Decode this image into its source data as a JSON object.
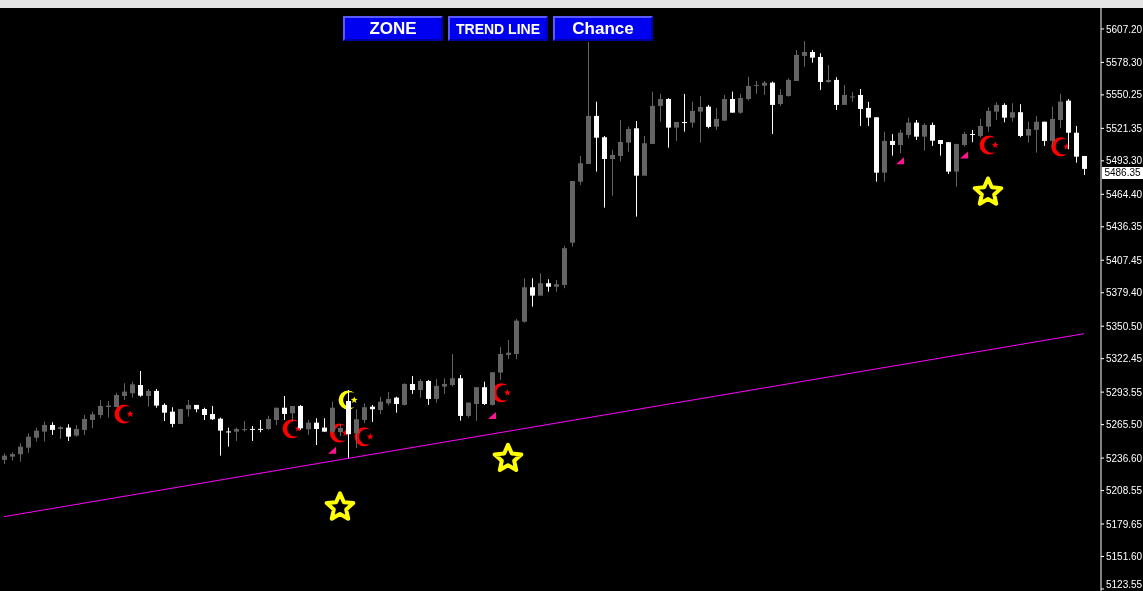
{
  "chart_data": {
    "type": "candlestick",
    "categories": [
      null,
      null,
      null,
      null,
      null,
      null,
      null,
      null,
      null,
      null,
      null,
      null,
      null,
      null,
      null,
      null,
      null,
      null,
      null,
      null,
      null,
      null,
      null,
      null,
      null,
      null,
      null,
      null,
      null,
      null,
      null,
      null,
      null,
      null,
      null,
      null,
      null,
      null,
      null,
      null,
      null,
      null,
      null,
      null,
      null,
      null,
      null,
      null,
      null,
      null,
      null,
      null,
      null,
      null,
      null,
      null,
      null,
      null,
      null,
      null,
      null,
      null,
      null,
      null,
      null,
      null,
      null,
      null,
      null,
      null,
      null,
      null,
      null,
      null,
      null,
      null,
      null,
      null,
      null,
      null,
      null,
      null,
      null,
      null,
      null,
      null,
      null,
      null,
      null,
      null,
      null,
      null,
      null,
      null,
      null,
      null,
      null,
      null,
      null,
      null,
      null,
      null,
      null,
      null,
      null,
      null,
      null,
      null,
      null,
      null,
      null,
      null,
      null,
      null,
      null,
      null,
      null,
      null,
      null,
      null,
      null,
      null,
      null,
      null,
      null,
      null,
      null,
      null,
      null,
      null,
      null,
      null,
      null,
      null,
      null,
      null
    ],
    "ohlc": [
      [
        5235.0,
        5240.7,
        5231.5,
        5238.7
      ],
      [
        5237.8,
        5241.6,
        5234.4,
        5240.1
      ],
      [
        5239.9,
        5249.4,
        5233.5,
        5246.5
      ],
      [
        5245.6,
        5258.0,
        5241.3,
        5255.1
      ],
      [
        5254.2,
        5262.9,
        5250.8,
        5260.3
      ],
      [
        5259.4,
        5268.1,
        5250.8,
        5265.2
      ],
      [
        5265.2,
        5267.5,
        5256.6,
        5260.9
      ],
      [
        5261.7,
        5264.3,
        5253.1,
        5263.2
      ],
      [
        5262.9,
        5265.8,
        5251.4,
        5255.1
      ],
      [
        5256.0,
        5265.2,
        5255.1,
        5261.7
      ],
      [
        5260.9,
        5273.8,
        5256.6,
        5270.4
      ],
      [
        5269.5,
        5276.7,
        5262.3,
        5274.4
      ],
      [
        5273.8,
        5286.8,
        5271.0,
        5281.6
      ],
      [
        5280.7,
        5285.9,
        5271.5,
        5281.9
      ],
      [
        5280.7,
        5293.1,
        5280.5,
        5291.1
      ],
      [
        5290.2,
        5301.2,
        5286.8,
        5294.0
      ],
      [
        5292.6,
        5302.6,
        5288.8,
        5300.3
      ],
      [
        5299.7,
        5311.8,
        5289.6,
        5290.5
      ],
      [
        5290.2,
        5296.3,
        5281.0,
        5294.6
      ],
      [
        5294.6,
        5296.3,
        5280.1,
        5281.9
      ],
      [
        5282.5,
        5283.9,
        5268.6,
        5275.8
      ],
      [
        5276.7,
        5280.5,
        5263.2,
        5266.1
      ],
      [
        5266.1,
        5279.0,
        5266.1,
        5279.0
      ],
      [
        5278.8,
        5286.8,
        5272.4,
        5282.5
      ],
      [
        5282.5,
        5282.5,
        5276.2,
        5278.8
      ],
      [
        5279.0,
        5280.1,
        5269.5,
        5273.8
      ],
      [
        5274.7,
        5281.6,
        5269.5,
        5270.1
      ],
      [
        5270.6,
        5271.5,
        5238.7,
        5260.3
      ],
      [
        5259.6,
        5262.9,
        5246.5,
        5259.2
      ],
      [
        5259.4,
        5262.9,
        5251.4,
        5261.7
      ],
      [
        5261.3,
        5268.6,
        5259.4,
        5261.6
      ],
      [
        5261.8,
        5264.3,
        5251.4,
        5261.6
      ],
      [
        5261.8,
        5269.5,
        5258.9,
        5261.6
      ],
      [
        5261.7,
        5273.2,
        5260.9,
        5270.4
      ],
      [
        5269.5,
        5280.1,
        5265.2,
        5280.1
      ],
      [
        5280.1,
        5290.2,
        5269.5,
        5274.7
      ],
      [
        5275.3,
        5281.6,
        5268.1,
        5281.6
      ],
      [
        5281.6,
        5282.5,
        5260.9,
        5262.3
      ],
      [
        5261.5,
        5269.5,
        5256.6,
        5267.2
      ],
      [
        5267.2,
        5271.0,
        5247.9,
        5261.7
      ],
      [
        5262.9,
        5271.0,
        5259.4,
        5259.4
      ],
      [
        5259.4,
        5285.3,
        5258.0,
        5280.1
      ],
      [
        5259.1,
        5266.0,
        5255.7,
        5262.6
      ],
      [
        5285.9,
        5295.4,
        5236.4,
        5257.2
      ],
      [
        5258.0,
        5278.7,
        5245.1,
        5270.1
      ],
      [
        5269.5,
        5283.9,
        5266.7,
        5280.5
      ],
      [
        5281.0,
        5282.5,
        5267.8,
        5278.8
      ],
      [
        5278.1,
        5289.6,
        5274.4,
        5285.3
      ],
      [
        5283.9,
        5293.7,
        5281.9,
        5287.7
      ],
      [
        5288.8,
        5289.6,
        5275.8,
        5283.3
      ],
      [
        5282.5,
        5301.2,
        5281.9,
        5300.6
      ],
      [
        5300.6,
        5307.5,
        5292.0,
        5295.4
      ],
      [
        5295.4,
        5304.9,
        5288.8,
        5303.2
      ],
      [
        5303.2,
        5304.1,
        5282.5,
        5287.7
      ],
      [
        5287.7,
        5304.9,
        5284.5,
        5298.9
      ],
      [
        5298.3,
        5305.5,
        5292.0,
        5300.6
      ],
      [
        5299.7,
        5326.5,
        5298.3,
        5305.5
      ],
      [
        5305.5,
        5308.4,
        5268.9,
        5273.0
      ],
      [
        5273.0,
        5284.5,
        5271.5,
        5284.5
      ],
      [
        5283.3,
        5297.8,
        5268.9,
        5297.8
      ],
      [
        5297.8,
        5302.6,
        5282.5,
        5283.3
      ],
      [
        5282.5,
        5310.7,
        5281.9,
        5310.7
      ],
      [
        5310.4,
        5332.3,
        5304.1,
        5326.5
      ],
      [
        5325.7,
        5338.6,
        5322.2,
        5327.6
      ],
      [
        5326.5,
        5356.7,
        5321.9,
        5355.3
      ],
      [
        5354.4,
        5391.9,
        5353.5,
        5384.1
      ],
      [
        5384.1,
        5391.9,
        5367.4,
        5376.9
      ],
      [
        5376.9,
        5396.2,
        5376.9,
        5387.6
      ],
      [
        5387.6,
        5391.0,
        5380.3,
        5384.6
      ],
      [
        5384.6,
        5390.4,
        5380.3,
        5386.7
      ],
      [
        5386.1,
        5419.8,
        5383.3,
        5417.8
      ],
      [
        5422.6,
        5475.9,
        5419.2,
        5475.9
      ],
      [
        5475.3,
        5497.5,
        5472.5,
        5491.2
      ],
      [
        5490.6,
        5596.0,
        5490.6,
        5532.1
      ],
      [
        5532.1,
        5544.4,
        5484.0,
        5513.3
      ],
      [
        5513.7,
        5514.8,
        5452.9,
        5494.9
      ],
      [
        5494.9,
        5502.7,
        5463.2,
        5498.4
      ],
      [
        5497.5,
        5528.6,
        5492.6,
        5509.6
      ],
      [
        5509.0,
        5522.8,
        5501.2,
        5520.8
      ],
      [
        5521.4,
        5527.7,
        5445.1,
        5480.5
      ],
      [
        5480.5,
        5514.8,
        5480.5,
        5508.5
      ],
      [
        5507.9,
        5553.1,
        5507.9,
        5540.7
      ],
      [
        5540.7,
        5551.1,
        5527.1,
        5546.7
      ],
      [
        5546.7,
        5547.4,
        5504.7,
        5522.0
      ],
      [
        5522.0,
        5526.9,
        5510.5,
        5526.9
      ],
      [
        5526.8,
        5551.1,
        5518.5,
        5526.5
      ],
      [
        5526.3,
        5544.4,
        5522.0,
        5536.4
      ],
      [
        5535.8,
        5549.3,
        5509.0,
        5539.8
      ],
      [
        5540.1,
        5541.6,
        5521.4,
        5522.6
      ],
      [
        5522.8,
        5539.0,
        5520.0,
        5529.5
      ],
      [
        5528.0,
        5550.2,
        5528.0,
        5546.7
      ],
      [
        5546.7,
        5553.1,
        5534.9,
        5534.9
      ],
      [
        5534.9,
        5551.1,
        5533.8,
        5547.6
      ],
      [
        5546.7,
        5566.0,
        5545.3,
        5558.0
      ],
      [
        5558.7,
        5562.3,
        5551.1,
        5558.9
      ],
      [
        5558.2,
        5562.3,
        5550.2,
        5560.8
      ],
      [
        5560.8,
        5561.7,
        5516.5,
        5541.6
      ],
      [
        5542.4,
        5555.1,
        5540.7,
        5550.2
      ],
      [
        5549.3,
        5564.6,
        5548.7,
        5563.2
      ],
      [
        5562.3,
        5589.1,
        5562.3,
        5584.8
      ],
      [
        5583.9,
        5596.8,
        5574.6,
        5587.3
      ],
      [
        5587.3,
        5589.1,
        5578.1,
        5582.4
      ],
      [
        5583.0,
        5586.2,
        5554.5,
        5561.4
      ],
      [
        5561.4,
        5576.1,
        5560.8,
        5563.2
      ],
      [
        5563.2,
        5565.5,
        5537.2,
        5541.6
      ],
      [
        5541.6,
        5558.8,
        5541.6,
        5550.2
      ],
      [
        5548.5,
        5552.8,
        5544.4,
        5548.9
      ],
      [
        5550.2,
        5555.4,
        5523.4,
        5538.1
      ],
      [
        5539.0,
        5544.2,
        5523.4,
        5530.6
      ],
      [
        5530.9,
        5530.9,
        5475.3,
        5483.1
      ],
      [
        5483.1,
        5518.5,
        5475.3,
        5510.5
      ],
      [
        5510.5,
        5516.3,
        5497.8,
        5507.0
      ],
      [
        5507.0,
        5520.0,
        5499.9,
        5517.6
      ],
      [
        5515.7,
        5530.6,
        5512.8,
        5526.3
      ],
      [
        5526.3,
        5528.6,
        5511.3,
        5514.2
      ],
      [
        5514.2,
        5525.8,
        5502.1,
        5524.3
      ],
      [
        5524.3,
        5526.3,
        5506.2,
        5510.7
      ],
      [
        5511.3,
        5511.3,
        5497.8,
        5507.9
      ],
      [
        5509.4,
        5509.4,
        5482.0,
        5484.0
      ],
      [
        5484.0,
        5507.9,
        5471.0,
        5507.9
      ],
      [
        5507.0,
        5518.5,
        5505.6,
        5516.5
      ],
      [
        5516.5,
        5520.0,
        5509.4,
        5516.1
      ],
      [
        5514.8,
        5529.5,
        5513.3,
        5523.4
      ],
      [
        5522.8,
        5539.6,
        5518.5,
        5536.4
      ],
      [
        5535.8,
        5543.9,
        5528.6,
        5541.6
      ],
      [
        5541.6,
        5543.0,
        5526.6,
        5530.6
      ],
      [
        5530.6,
        5543.0,
        5527.1,
        5535.3
      ],
      [
        5535.3,
        5542.2,
        5513.7,
        5514.8
      ],
      [
        5515.1,
        5527.1,
        5509.0,
        5520.8
      ],
      [
        5520.0,
        5532.1,
        5500.4,
        5527.1
      ],
      [
        5527.1,
        5527.1,
        5506.2,
        5510.5
      ],
      [
        5510.5,
        5540.1,
        5505.6,
        5529.5
      ],
      [
        5528.6,
        5551.1,
        5521.4,
        5544.4
      ],
      [
        5545.3,
        5546.7,
        5503.3,
        5517.6
      ],
      [
        5517.6,
        5523.4,
        5491.7,
        5496.9
      ],
      [
        5497.5,
        5497.5,
        5481.1,
        5486.35
      ]
    ],
    "colors": [
      "#646464",
      "#646464",
      "#646464",
      "#646464",
      "#646464",
      "#646464",
      "#ffffff",
      "#646464",
      "#ffffff",
      "#646464",
      "#646464",
      "#646464",
      "#646464",
      "#646464",
      "#646464",
      "#646464",
      "#646464",
      "#ffffff",
      "#646464",
      "#ffffff",
      "#ffffff",
      "#ffffff",
      "#646464",
      "#646464",
      "#ffffff",
      "#ffffff",
      "#ffffff",
      "#ffffff",
      "#ffffff",
      "#646464",
      "#646464",
      "#ffffff",
      "#ffffff",
      "#646464",
      "#646464",
      "#ffffff",
      "#646464",
      "#ffffff",
      "#646464",
      "#ffffff",
      "#ffffff",
      "#646464",
      "#646464",
      "#ffffff",
      "#646464",
      "#646464",
      "#ffffff",
      "#646464",
      "#646464",
      "#ffffff",
      "#646464",
      "#ffffff",
      "#646464",
      "#ffffff",
      "#646464",
      "#646464",
      "#646464",
      "#ffffff",
      "#646464",
      "#646464",
      "#ffffff",
      "#646464",
      "#646464",
      "#646464",
      "#646464",
      "#646464",
      "#ffffff",
      "#646464",
      "#ffffff",
      "#646464",
      "#646464",
      "#646464",
      "#646464",
      "#646464",
      "#ffffff",
      "#ffffff",
      "#646464",
      "#646464",
      "#646464",
      "#ffffff",
      "#646464",
      "#646464",
      "#646464",
      "#ffffff",
      "#646464",
      "#ffffff",
      "#646464",
      "#646464",
      "#ffffff",
      "#646464",
      "#646464",
      "#ffffff",
      "#646464",
      "#646464",
      "#646464",
      "#646464",
      "#ffffff",
      "#646464",
      "#646464",
      "#646464",
      "#646464",
      "#ffffff",
      "#ffffff",
      "#646464",
      "#ffffff",
      "#646464",
      "#646464",
      "#ffffff",
      "#ffffff",
      "#ffffff",
      "#646464",
      "#ffffff",
      "#646464",
      "#646464",
      "#ffffff",
      "#646464",
      "#ffffff",
      "#ffffff",
      "#ffffff",
      "#646464",
      "#646464",
      "#ffffff",
      "#646464",
      "#646464",
      "#646464",
      "#ffffff",
      "#646464",
      "#ffffff",
      "#646464",
      "#646464",
      "#ffffff",
      "#646464",
      "#646464",
      "#ffffff",
      "#ffffff",
      "#ffffff"
    ],
    "series": [
      {
        "type": "line",
        "color": "#ff00ff",
        "values": [
          5186,
          null,
          null,
          null,
          null,
          null,
          null,
          null,
          null,
          null,
          null,
          null,
          null,
          null,
          null,
          null,
          null,
          null,
          null,
          null,
          null,
          null,
          null,
          null,
          null,
          null,
          null,
          null,
          null,
          null,
          null,
          null,
          null,
          null,
          null,
          null,
          null,
          null,
          null,
          null,
          null,
          null,
          null,
          null,
          null,
          null,
          null,
          null,
          null,
          null,
          null,
          null,
          null,
          null,
          null,
          null,
          null,
          null,
          null,
          null,
          null,
          null,
          null,
          null,
          null,
          null,
          null,
          null,
          null,
          null,
          null,
          null,
          null,
          null,
          null,
          null,
          null,
          null,
          null,
          null,
          null,
          null,
          null,
          null,
          null,
          null,
          null,
          null,
          null,
          null,
          null,
          null,
          null,
          null,
          null,
          null,
          null,
          null,
          null,
          null,
          null,
          null,
          null,
          null,
          null,
          null,
          null,
          null,
          null,
          null,
          null,
          null,
          null,
          null,
          null,
          null,
          null,
          null,
          null,
          null,
          null,
          null,
          null,
          null,
          null,
          null,
          null,
          null,
          null,
          null,
          null,
          null,
          null,
          null,
          null,
          5344
        ]
      },
      {
        "type": "scatter",
        "marker": "star",
        "color": "#ffff00",
        "values": [
          null,
          null,
          null,
          null,
          null,
          null,
          null,
          null,
          null,
          null,
          null,
          null,
          null,
          null,
          null,
          null,
          null,
          null,
          null,
          null,
          null,
          null,
          null,
          null,
          null,
          null,
          null,
          null,
          null,
          null,
          null,
          null,
          null,
          null,
          null,
          null,
          null,
          null,
          null,
          null,
          null,
          null,
          5194,
          null,
          null,
          null,
          null,
          null,
          null,
          null,
          null,
          null,
          null,
          null,
          null,
          null,
          null,
          null,
          null,
          null,
          null,
          null,
          null,
          5236,
          null,
          null,
          null,
          null,
          null,
          null,
          null,
          null,
          null,
          null,
          null,
          null,
          null,
          null,
          null,
          null,
          null,
          null,
          null,
          null,
          null,
          null,
          null,
          null,
          null,
          null,
          null,
          null,
          null,
          null,
          null,
          null,
          null,
          null,
          null,
          null,
          null,
          null,
          null,
          null,
          null,
          null,
          null,
          null,
          null,
          null,
          null,
          null,
          null,
          null,
          null,
          null,
          null,
          null,
          null,
          null,
          null,
          null,
          null,
          5466,
          null,
          null,
          null,
          null,
          null,
          null,
          null,
          null,
          null,
          null,
          null,
          null
        ]
      },
      {
        "type": "scatter",
        "marker": "triangle",
        "color": "#ff1493",
        "values": [
          null,
          null,
          null,
          null,
          null,
          null,
          null,
          null,
          null,
          null,
          null,
          null,
          null,
          null,
          null,
          null,
          null,
          null,
          null,
          null,
          null,
          null,
          null,
          null,
          null,
          null,
          null,
          null,
          null,
          null,
          null,
          null,
          null,
          null,
          null,
          null,
          null,
          null,
          null,
          null,
          null,
          5243,
          null,
          null,
          null,
          null,
          null,
          null,
          null,
          null,
          null,
          null,
          null,
          null,
          null,
          null,
          null,
          null,
          null,
          null,
          null,
          5273,
          null,
          null,
          null,
          null,
          null,
          null,
          null,
          null,
          null,
          null,
          null,
          null,
          null,
          null,
          null,
          null,
          null,
          null,
          null,
          null,
          null,
          null,
          null,
          null,
          null,
          null,
          null,
          null,
          null,
          null,
          null,
          null,
          null,
          null,
          null,
          null,
          null,
          null,
          null,
          null,
          null,
          null,
          null,
          null,
          null,
          null,
          null,
          null,
          null,
          null,
          5493,
          null,
          null,
          null,
          null,
          null,
          null,
          null,
          5498,
          null,
          null,
          null,
          null,
          null,
          null,
          null,
          null,
          null,
          null,
          null,
          null,
          null,
          null,
          null
        ]
      }
    ],
    "ylim": [
      5121.8,
      5625.3
    ],
    "yticks": [
      {
        "value": 5607.2,
        "label": "5607.20"
      },
      {
        "value": 5578.3,
        "label": "5578.30"
      },
      5550.25,
      5521.35,
      {
        "value": 5493.3,
        "label": "5493.30"
      },
      {
        "value": 5464.4,
        "label": "5464.40"
      },
      5436.35,
      5407.45,
      {
        "value": 5379.4,
        "label": "5379.40"
      },
      {
        "value": 5350.5,
        "label": "5350.50"
      },
      5322.45,
      5293.55,
      {
        "value": 5265.5,
        "label": "5265.50"
      },
      {
        "value": 5236.6,
        "label": "5236.60"
      },
      5208.55,
      5179.65,
      {
        "value": 5151.6,
        "label": "5151.60"
      },
      5123.55
    ],
    "tick_labels": "y",
    "annotations": [
      "ZONE",
      "TREND LINE",
      "Chance",
      "5486.35"
    ]
  }
}
